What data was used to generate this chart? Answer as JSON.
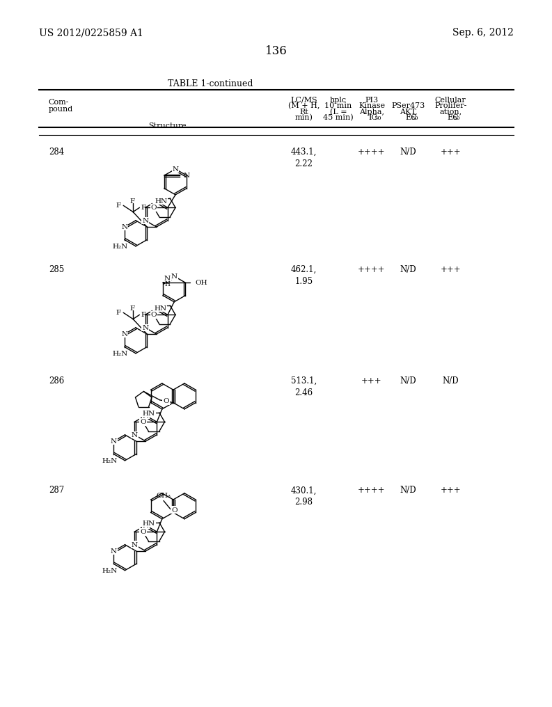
{
  "page_number": "136",
  "patent_left": "US 2012/0225859 A1",
  "patent_right": "Sep. 6, 2012",
  "table_title": "TABLE 1-continued",
  "compounds": [
    {
      "id": "284",
      "lcms": "443.1,\n2.22",
      "pi3": "++++",
      "pser": "N/D",
      "cellular": "+++"
    },
    {
      "id": "285",
      "lcms": "462.1,\n1.95",
      "pi3": "++++",
      "pser": "N/D",
      "cellular": "+++"
    },
    {
      "id": "286",
      "lcms": "513.1,\n2.46",
      "pi3": "+++",
      "pser": "N/D",
      "cellular": "N/D"
    },
    {
      "id": "287",
      "lcms": "430.1,\n2.98",
      "pi3": "++++",
      "pser": "N/D",
      "cellular": "+++"
    }
  ],
  "bg_color": "#ffffff",
  "text_color": "#000000"
}
